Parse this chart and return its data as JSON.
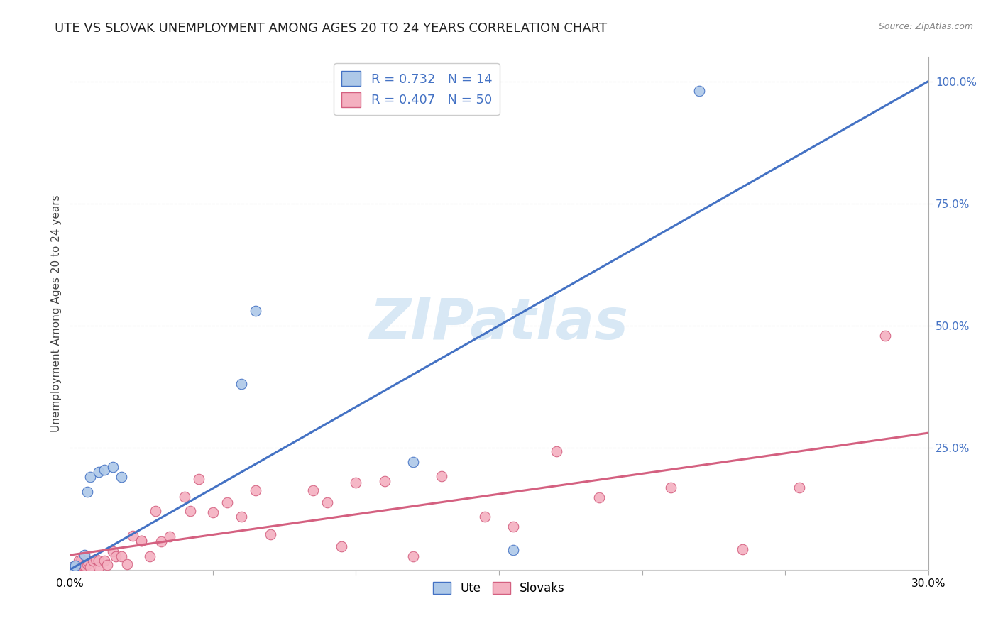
{
  "title": "UTE VS SLOVAK UNEMPLOYMENT AMONG AGES 20 TO 24 YEARS CORRELATION CHART",
  "source": "Source: ZipAtlas.com",
  "ylabel": "Unemployment Among Ages 20 to 24 years",
  "xlim": [
    0.0,
    0.3
  ],
  "ylim": [
    0.0,
    1.05
  ],
  "ute_R": 0.732,
  "ute_N": 14,
  "slovak_R": 0.407,
  "slovak_N": 50,
  "ute_color": "#adc8e8",
  "ute_line_color": "#4472c4",
  "slovak_color": "#f4b0c0",
  "slovak_line_color": "#d46080",
  "watermark": "ZIPatlas",
  "watermark_color": "#d8e8f5",
  "ute_x": [
    0.001,
    0.002,
    0.005,
    0.006,
    0.007,
    0.01,
    0.012,
    0.015,
    0.018,
    0.06,
    0.065,
    0.12,
    0.155,
    0.22
  ],
  "ute_y": [
    0.005,
    0.008,
    0.03,
    0.16,
    0.19,
    0.2,
    0.205,
    0.21,
    0.19,
    0.38,
    0.53,
    0.22,
    0.04,
    0.98
  ],
  "slovak_x": [
    0.001,
    0.002,
    0.003,
    0.003,
    0.004,
    0.004,
    0.005,
    0.006,
    0.006,
    0.007,
    0.008,
    0.009,
    0.01,
    0.01,
    0.012,
    0.013,
    0.015,
    0.016,
    0.018,
    0.02,
    0.022,
    0.025,
    0.025,
    0.028,
    0.03,
    0.032,
    0.035,
    0.04,
    0.042,
    0.045,
    0.05,
    0.055,
    0.06,
    0.065,
    0.07,
    0.085,
    0.09,
    0.095,
    0.1,
    0.11,
    0.12,
    0.13,
    0.145,
    0.155,
    0.17,
    0.185,
    0.21,
    0.235,
    0.255,
    0.285
  ],
  "slovak_y": [
    0.005,
    0.005,
    0.008,
    0.018,
    0.01,
    0.022,
    0.008,
    0.012,
    0.018,
    0.005,
    0.018,
    0.022,
    0.005,
    0.018,
    0.018,
    0.01,
    0.038,
    0.028,
    0.028,
    0.012,
    0.07,
    0.06,
    0.06,
    0.028,
    0.12,
    0.058,
    0.068,
    0.15,
    0.12,
    0.185,
    0.118,
    0.138,
    0.108,
    0.162,
    0.072,
    0.162,
    0.138,
    0.048,
    0.178,
    0.182,
    0.028,
    0.192,
    0.108,
    0.088,
    0.242,
    0.148,
    0.168,
    0.042,
    0.168,
    0.48
  ],
  "ute_line_x0": 0.0,
  "ute_line_y0": 0.0,
  "ute_line_x1": 0.3,
  "ute_line_y1": 1.0,
  "slovak_line_x0": 0.0,
  "slovak_line_y0": 0.03,
  "slovak_line_x1": 0.3,
  "slovak_line_y1": 0.28
}
